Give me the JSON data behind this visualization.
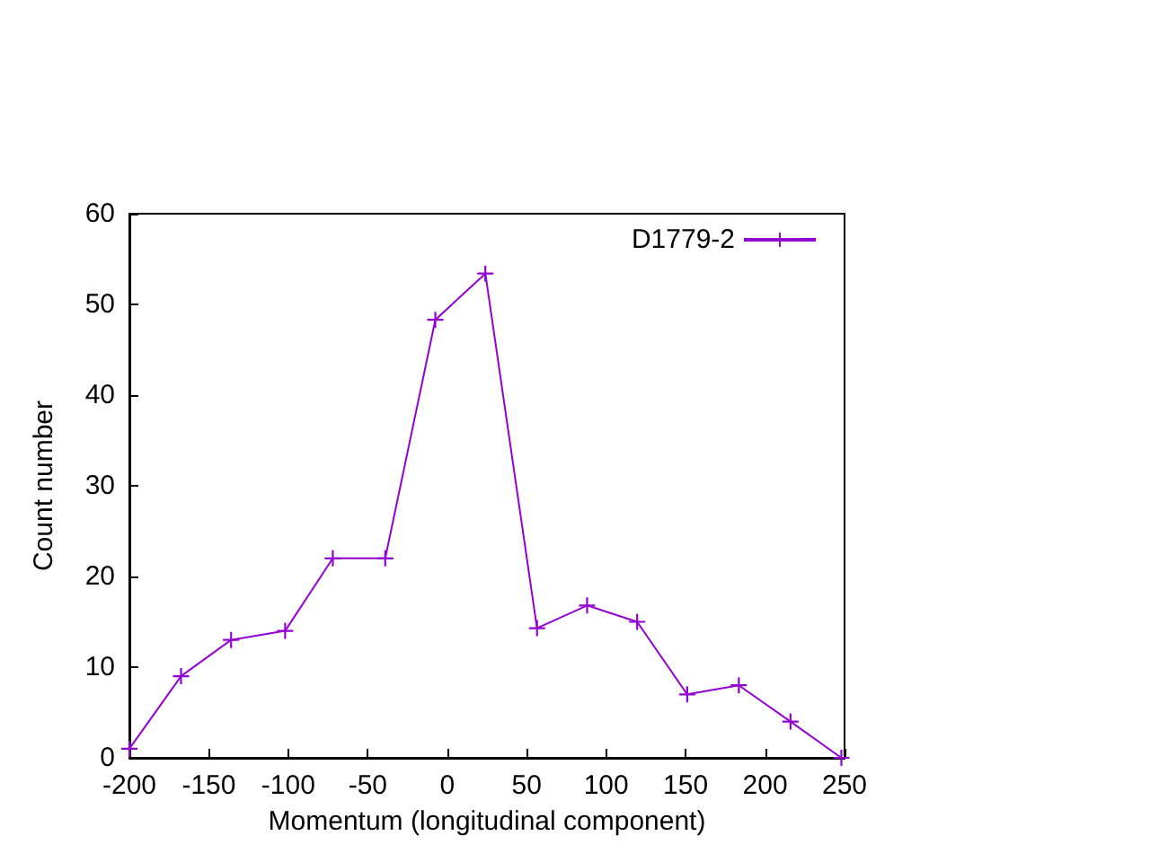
{
  "chart_data": {
    "type": "line",
    "xlabel": "Momentum (longitudinal component)",
    "ylabel": "Count number",
    "xlim": [
      -200,
      250
    ],
    "xticks": [
      -200,
      -150,
      -100,
      -50,
      0,
      50,
      100,
      150,
      200,
      250
    ],
    "ylim": [
      0,
      60
    ],
    "yticks": [
      0,
      10,
      20,
      30,
      40,
      50,
      60
    ],
    "series": [
      {
        "name": "D1779-2",
        "color": "#9400d3",
        "x": [
          -200,
          -167.5,
          -136,
          -102,
          -72,
          -39,
          -7.5,
          24,
          56.5,
          88,
          119.5,
          151,
          183.5,
          216,
          248
        ],
        "values": [
          1,
          9,
          13,
          14,
          22,
          22,
          48.3,
          53.4,
          14.3,
          16.8,
          15,
          7,
          8,
          4,
          0
        ]
      }
    ],
    "legend": "top right",
    "marker": "cross",
    "line_style": "solid",
    "grid": false
  }
}
